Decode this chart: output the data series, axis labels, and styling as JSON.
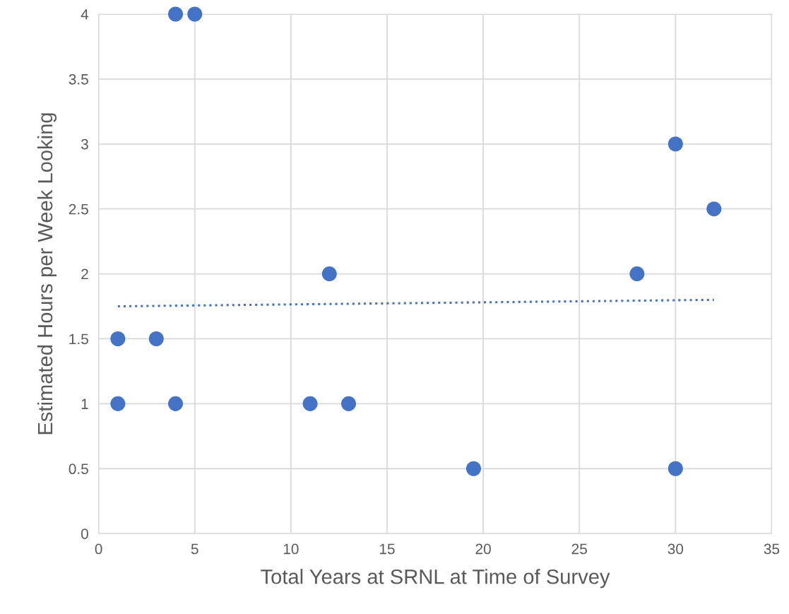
{
  "chart_data": {
    "type": "scatter",
    "xlabel": "Total Years at SRNL at Time of Survey",
    "ylabel": "Estimated Hours per Week Looking",
    "xlim": [
      0,
      35
    ],
    "xticks": [
      0,
      5,
      10,
      15,
      20,
      25,
      30,
      35
    ],
    "ylim": [
      0,
      4
    ],
    "yticks": [
      0,
      0.5,
      1,
      1.5,
      2,
      2.5,
      3,
      3.5,
      4
    ],
    "grid": true,
    "marker": "circle",
    "series": [
      {
        "color": "#4472c4",
        "x": [
          1,
          3,
          1,
          4,
          11,
          13,
          19.5,
          30,
          12,
          28,
          30,
          32,
          4,
          5
        ],
        "values": [
          1.5,
          1.5,
          1,
          1,
          1,
          1,
          0.5,
          0.5,
          2,
          2,
          3,
          2.5,
          4,
          4
        ]
      },
      {
        "type": "line",
        "color": "#4472c4",
        "line_style": "dotted",
        "marker": "none",
        "x": [
          1,
          32
        ],
        "values": [
          1.75,
          1.8
        ]
      }
    ]
  }
}
